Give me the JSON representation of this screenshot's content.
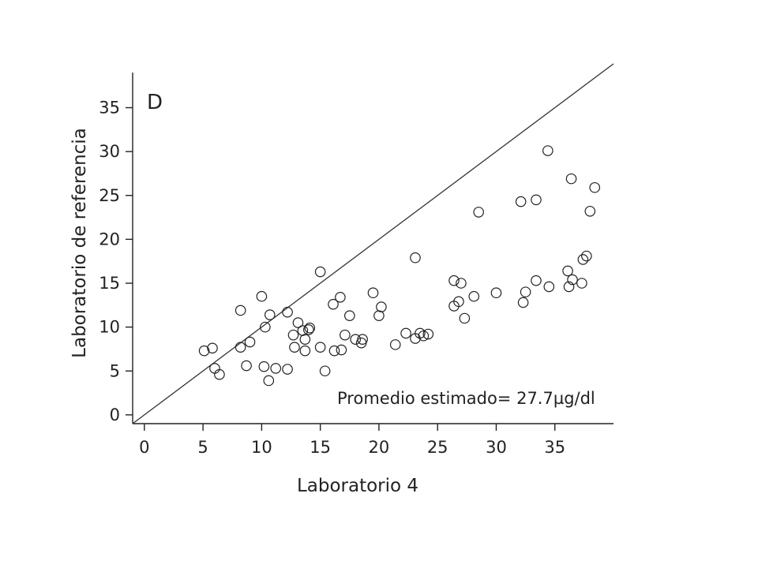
{
  "chart_data": {
    "type": "scatter",
    "panel_label": "D",
    "xlabel": "Laboratorio 4",
    "ylabel": "Laboratorio de referencia",
    "annotation": "Promedio estimado= 27.7µg/dl",
    "xlim": [
      -1,
      40
    ],
    "ylim": [
      -1,
      39
    ],
    "x_ticks": [
      0,
      5,
      10,
      15,
      20,
      25,
      30,
      35
    ],
    "y_ticks": [
      0,
      5,
      10,
      15,
      20,
      25,
      30,
      35
    ],
    "reference_line": {
      "x": [
        -1,
        40
      ],
      "y": [
        -1,
        40
      ]
    },
    "grid": false,
    "series": [
      {
        "points": [
          [
            5.1,
            7.3
          ],
          [
            5.8,
            7.6
          ],
          [
            6.0,
            5.3
          ],
          [
            6.4,
            4.6
          ],
          [
            8.2,
            11.9
          ],
          [
            8.2,
            7.7
          ],
          [
            8.7,
            5.6
          ],
          [
            9.0,
            8.3
          ],
          [
            10.0,
            13.5
          ],
          [
            10.2,
            5.5
          ],
          [
            10.3,
            10.0
          ],
          [
            10.6,
            3.9
          ],
          [
            10.7,
            11.4
          ],
          [
            11.2,
            5.3
          ],
          [
            12.2,
            11.7
          ],
          [
            12.2,
            5.2
          ],
          [
            12.7,
            9.1
          ],
          [
            12.8,
            7.7
          ],
          [
            13.1,
            10.5
          ],
          [
            13.5,
            9.6
          ],
          [
            13.7,
            8.6
          ],
          [
            13.7,
            7.3
          ],
          [
            14.0,
            9.7
          ],
          [
            14.1,
            9.9
          ],
          [
            15.0,
            16.3
          ],
          [
            15.0,
            7.7
          ],
          [
            15.4,
            5.0
          ],
          [
            16.1,
            12.6
          ],
          [
            16.2,
            7.3
          ],
          [
            16.7,
            13.4
          ],
          [
            16.8,
            7.4
          ],
          [
            17.1,
            9.1
          ],
          [
            17.5,
            11.3
          ],
          [
            18.0,
            8.6
          ],
          [
            18.5,
            8.2
          ],
          [
            18.6,
            8.6
          ],
          [
            19.5,
            13.9
          ],
          [
            20.0,
            11.3
          ],
          [
            20.2,
            12.3
          ],
          [
            21.4,
            8.0
          ],
          [
            22.3,
            9.3
          ],
          [
            23.1,
            17.9
          ],
          [
            23.1,
            8.7
          ],
          [
            23.5,
            9.3
          ],
          [
            23.8,
            9.0
          ],
          [
            24.2,
            9.2
          ],
          [
            26.4,
            15.3
          ],
          [
            26.4,
            12.4
          ],
          [
            26.8,
            12.9
          ],
          [
            27.0,
            15.0
          ],
          [
            27.3,
            11.0
          ],
          [
            28.1,
            13.5
          ],
          [
            28.5,
            23.1
          ],
          [
            30.0,
            13.9
          ],
          [
            32.1,
            24.3
          ],
          [
            32.3,
            12.8
          ],
          [
            32.5,
            14.0
          ],
          [
            33.4,
            24.5
          ],
          [
            33.4,
            15.3
          ],
          [
            34.4,
            30.1
          ],
          [
            34.5,
            14.6
          ],
          [
            36.1,
            16.4
          ],
          [
            36.2,
            14.6
          ],
          [
            36.4,
            26.9
          ],
          [
            36.5,
            15.4
          ],
          [
            37.3,
            15.0
          ],
          [
            37.4,
            17.7
          ],
          [
            37.7,
            18.1
          ],
          [
            38.0,
            23.2
          ],
          [
            38.4,
            25.9
          ]
        ]
      }
    ]
  }
}
